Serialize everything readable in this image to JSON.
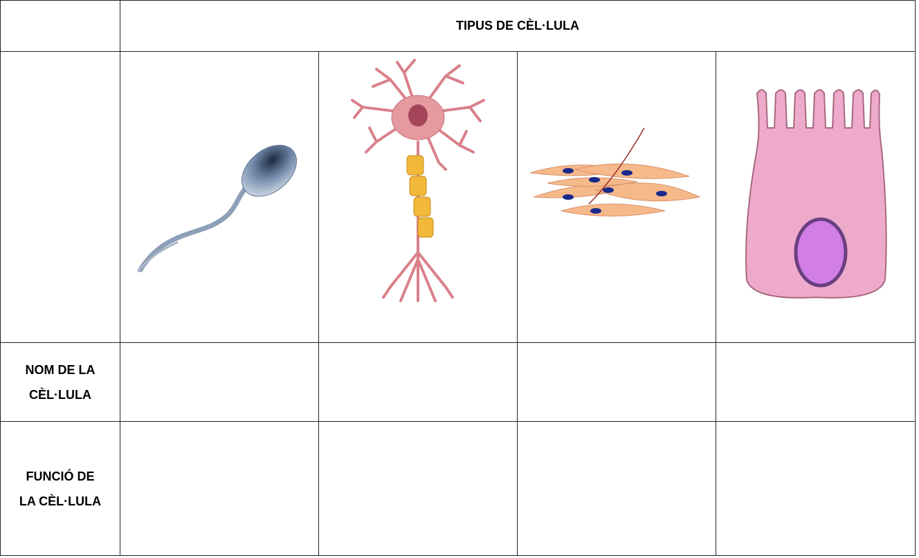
{
  "table": {
    "header": "TIPUS DE CÈL·LULA",
    "rows": [
      {
        "label": [
          "NOM DE LA",
          "CÈL·LULA"
        ]
      },
      {
        "label": [
          "FUNCIÓ DE",
          "LA CÈL·LULA"
        ]
      }
    ]
  }
}
